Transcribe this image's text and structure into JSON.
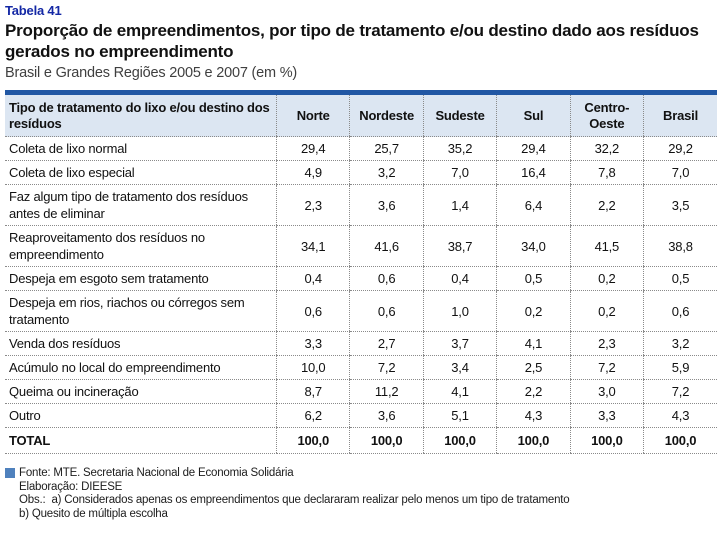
{
  "header": {
    "table_label": "Tabela 41",
    "title": "Proporção de empreendimentos, por tipo de tratamento e/ou destino dado aos resíduos gerados no empreendimento",
    "subtitle": "Brasil e Grandes Regiões 2005 e 2007 (em %)"
  },
  "colors": {
    "title_blue": "#1428a5",
    "table_top_border": "#2157a4",
    "header_background": "#dce6f2",
    "fonte_square": "#4f81bd",
    "dotted_lines": "#8a8a8a"
  },
  "chart_data": {
    "type": "table",
    "columns": [
      "Tipo de tratamento do lixo e/ou destino dos resíduos",
      "Norte",
      "Nordeste",
      "Sudeste",
      "Sul",
      "Centro-Oeste",
      "Brasil"
    ],
    "rows": [
      {
        "label": "Coleta de lixo normal",
        "values": [
          "29,4",
          "25,7",
          "35,2",
          "29,4",
          "32,2",
          "29,2"
        ],
        "bold": false
      },
      {
        "label": "Coleta de lixo especial",
        "values": [
          "4,9",
          "3,2",
          "7,0",
          "16,4",
          "7,8",
          "7,0"
        ],
        "bold": false
      },
      {
        "label": "Faz algum tipo de tratamento dos resíduos antes de eliminar",
        "values": [
          "2,3",
          "3,6",
          "1,4",
          "6,4",
          "2,2",
          "3,5"
        ],
        "bold": false
      },
      {
        "label": "Reaproveitamento dos resíduos no empreendimento",
        "values": [
          "34,1",
          "41,6",
          "38,7",
          "34,0",
          "41,5",
          "38,8"
        ],
        "bold": false
      },
      {
        "label": "Despeja em esgoto sem tratamento",
        "values": [
          "0,4",
          "0,6",
          "0,4",
          "0,5",
          "0,2",
          "0,5"
        ],
        "bold": false
      },
      {
        "label": "Despeja em rios, riachos ou córregos sem tratamento",
        "values": [
          "0,6",
          "0,6",
          "1,0",
          "0,2",
          "0,2",
          "0,6"
        ],
        "bold": false
      },
      {
        "label": "Venda dos resíduos",
        "values": [
          "3,3",
          "2,7",
          "3,7",
          "4,1",
          "2,3",
          "3,2"
        ],
        "bold": false
      },
      {
        "label": "Acúmulo no local do empreendimento",
        "values": [
          "10,0",
          "7,2",
          "3,4",
          "2,5",
          "7,2",
          "5,9"
        ],
        "bold": false
      },
      {
        "label": "Queima ou incineração",
        "values": [
          "8,7",
          "11,2",
          "4,1",
          "2,2",
          "3,0",
          "7,2"
        ],
        "bold": false
      },
      {
        "label": "Outro",
        "values": [
          "6,2",
          "3,6",
          "5,1",
          "4,3",
          "3,3",
          "4,3"
        ],
        "bold": false
      },
      {
        "label": "TOTAL",
        "values": [
          "100,0",
          "100,0",
          "100,0",
          "100,0",
          "100,0",
          "100,0"
        ],
        "bold": true
      }
    ]
  },
  "footer": {
    "fonte": "Fonte: MTE. Secretaria Nacional de Economia Solidária",
    "elaboracao": "Elaboração: DIEESE",
    "obs_label": "Obs.:",
    "obs_a": "a) Considerados apenas os empreendimentos que declararam realizar pelo menos um tipo de tratamento",
    "obs_b": "b) Quesito de múltipla escolha"
  }
}
